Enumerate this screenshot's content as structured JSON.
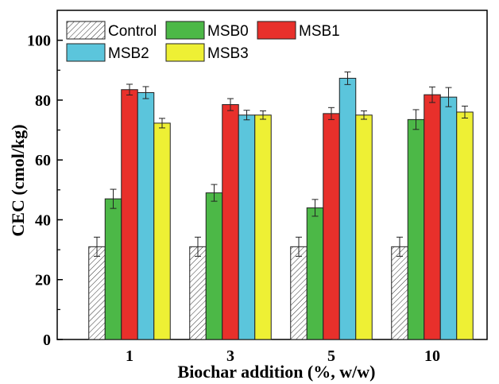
{
  "chart_data": {
    "type": "bar",
    "title": "",
    "xlabel": "Biochar addition (%, w/w)",
    "ylabel": "CEC (cmol/kg)",
    "categories": [
      "1",
      "3",
      "5",
      "10"
    ],
    "ylim": [
      0,
      110
    ],
    "yticks": [
      0,
      20,
      40,
      60,
      80,
      100
    ],
    "legend_position": "top-left",
    "grid": false,
    "series": [
      {
        "name": "Control",
        "color": "#ffffff",
        "pattern": "hatch",
        "values": [
          31,
          31,
          31,
          31
        ],
        "errors": [
          3.2,
          3.2,
          3.2,
          3.2
        ]
      },
      {
        "name": "MSB0",
        "color": "#4cb847",
        "values": [
          47,
          49,
          44,
          73.5
        ],
        "errors": [
          3.2,
          2.8,
          2.8,
          3.3
        ]
      },
      {
        "name": "MSB1",
        "color": "#e8302b",
        "values": [
          83.5,
          78.5,
          75.5,
          81.8
        ],
        "errors": [
          1.8,
          2.0,
          2.0,
          2.6
        ]
      },
      {
        "name": "MSB2",
        "color": "#5bc5dc",
        "values": [
          82.5,
          75,
          87.3,
          81
        ],
        "errors": [
          2.0,
          1.6,
          2.1,
          3.2
        ]
      },
      {
        "name": "MSB3",
        "color": "#eef034",
        "values": [
          72.3,
          75,
          75,
          76
        ],
        "errors": [
          1.6,
          1.4,
          1.4,
          2.0
        ]
      }
    ]
  }
}
